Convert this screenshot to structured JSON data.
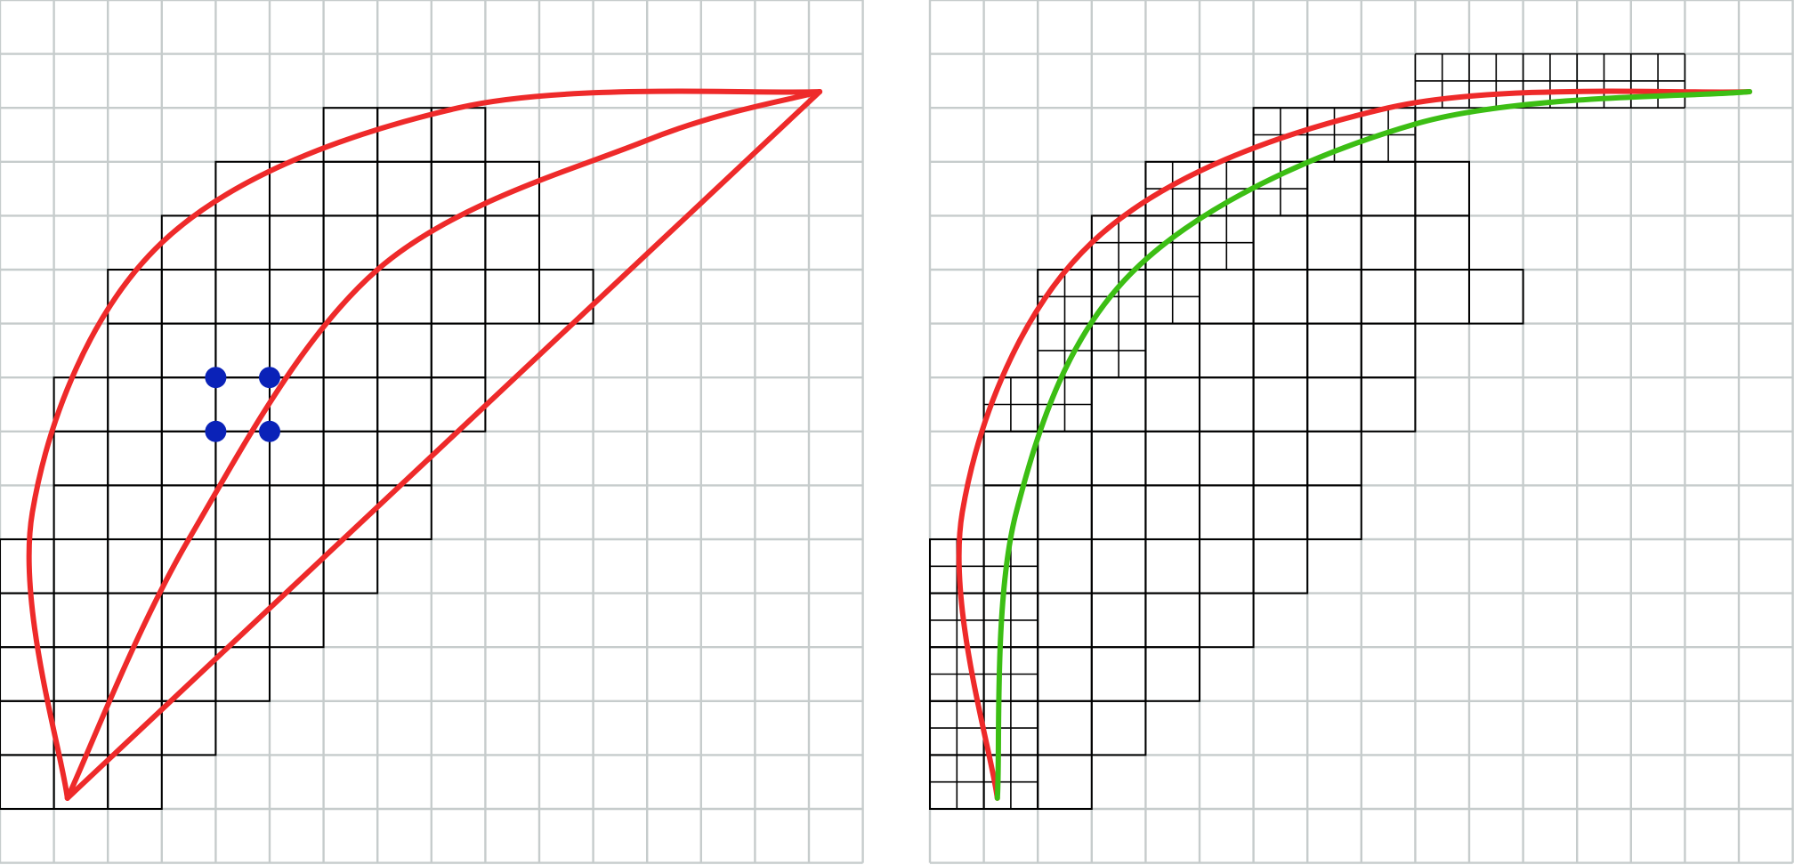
{
  "figure": {
    "panels": [
      {
        "id": "left",
        "grid_cells": 16,
        "coarse_cells": [
          [
            9,
            1,
            7
          ],
          [
            6,
            2,
            9
          ],
          [
            4,
            3,
            10
          ],
          [
            3,
            4,
            10
          ],
          [
            2,
            5,
            11
          ],
          [
            2,
            6,
            9
          ],
          [
            1,
            7,
            9
          ],
          [
            1,
            8,
            8
          ],
          [
            1,
            9,
            8
          ],
          [
            0,
            10,
            7
          ],
          [
            0,
            11,
            6
          ],
          [
            0,
            12,
            5
          ],
          [
            0,
            13,
            4
          ],
          [
            0,
            14,
            3
          ]
        ],
        "marker_points": [
          [
            4,
            7
          ],
          [
            5,
            7
          ],
          [
            4,
            8
          ],
          [
            5,
            8
          ]
        ],
        "curves": [
          {
            "name": "upper-boundary-curve",
            "color": "#ee2a2a",
            "points": [
              [
                1.25,
                14.8
              ],
              [
                0.6,
                9.5
              ],
              [
                3,
                4.5
              ],
              [
                8.5,
                2
              ],
              [
                15.2,
                1.7
              ]
            ]
          },
          {
            "name": "middle-curve",
            "color": "#ee2a2a",
            "points": [
              [
                1.25,
                14.8
              ],
              [
                3.5,
                10
              ],
              [
                7,
                5
              ],
              [
                12,
                2.6
              ],
              [
                15.2,
                1.7
              ]
            ]
          },
          {
            "name": "lower-boundary-curve",
            "color": "#ee2a2a",
            "points": [
              [
                1.25,
                14.8
              ],
              [
                15.2,
                1.7
              ]
            ]
          }
        ],
        "accent_colors": {
          "grid": "#c6cccc",
          "cells": "#000000",
          "markers": "#0a22b8"
        }
      },
      {
        "id": "right",
        "grid_cells": 16,
        "coarse_cells": [
          [
            9,
            1,
            7
          ],
          [
            6,
            2,
            9
          ],
          [
            4,
            3,
            10
          ],
          [
            3,
            4,
            10
          ],
          [
            2,
            5,
            11
          ],
          [
            2,
            6,
            9
          ],
          [
            1,
            7,
            9
          ],
          [
            1,
            8,
            8
          ],
          [
            1,
            9,
            8
          ],
          [
            0,
            10,
            7
          ],
          [
            0,
            11,
            6
          ],
          [
            0,
            12,
            5
          ],
          [
            0,
            13,
            4
          ],
          [
            0,
            14,
            3
          ]
        ],
        "refined_blocks": [
          [
            9,
            1,
            14,
            2
          ],
          [
            6,
            2,
            9,
            3
          ],
          [
            4,
            3,
            7,
            4
          ],
          [
            3,
            4,
            6,
            5
          ],
          [
            2,
            5,
            5,
            6
          ],
          [
            2,
            6,
            4,
            7
          ],
          [
            1,
            7,
            3,
            8
          ],
          [
            0,
            10,
            2,
            15
          ]
        ],
        "curves": [
          {
            "name": "red-curve",
            "color": "#ee2a2a",
            "points": [
              [
                1.25,
                14.8
              ],
              [
                0.6,
                9.5
              ],
              [
                3,
                4.5
              ],
              [
                8.5,
                2
              ],
              [
                15.2,
                1.7
              ]
            ]
          },
          {
            "name": "green-curve",
            "color": "#3cbe14",
            "points": [
              [
                1.25,
                14.8
              ],
              [
                1.6,
                9.5
              ],
              [
                3.8,
                5
              ],
              [
                9,
                2.3
              ],
              [
                15.2,
                1.7
              ]
            ]
          }
        ],
        "accent_colors": {
          "grid": "#c6cccc",
          "cells": "#000000"
        }
      }
    ]
  }
}
